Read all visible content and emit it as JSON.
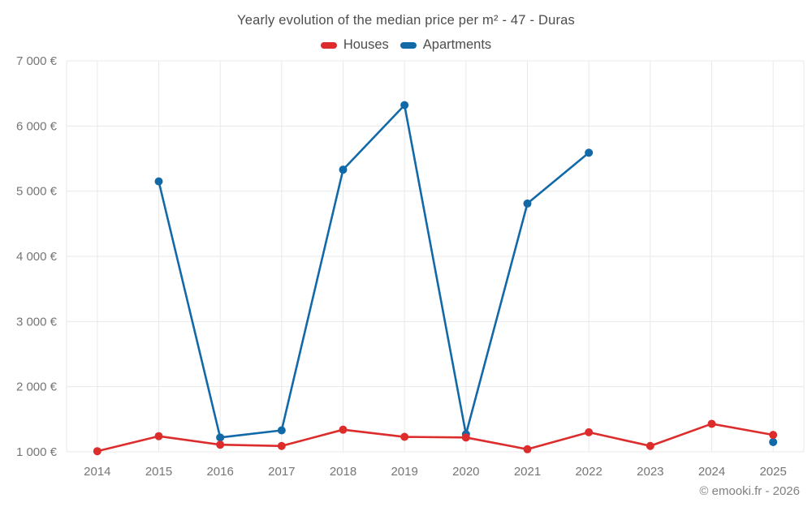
{
  "title": "Yearly evolution of the median price per m² - 47 - Duras",
  "legend": {
    "items": [
      {
        "label": "Houses",
        "color": "#dd2c2c"
      },
      {
        "label": "Apartments",
        "color": "#1269a8"
      }
    ]
  },
  "footer": {
    "credit": "© emooki.fr - 2026"
  },
  "chart_data": {
    "type": "line",
    "title": "Yearly evolution of the median price per m² - 47 - Duras",
    "x": [
      2014,
      2015,
      2016,
      2017,
      2018,
      2019,
      2020,
      2021,
      2022,
      2023,
      2024,
      2025
    ],
    "series": [
      {
        "name": "Houses",
        "color": "#dd2c2c",
        "values": [
          1010,
          1240,
          1110,
          1090,
          1340,
          1230,
          1220,
          1040,
          1300,
          1090,
          1430,
          1260
        ]
      },
      {
        "name": "Apartments",
        "color": "#1269a8",
        "values": [
          null,
          5150,
          1220,
          1330,
          5330,
          6320,
          1270,
          4810,
          5590,
          null,
          null,
          1150
        ]
      }
    ],
    "xlabel": "",
    "ylabel": "",
    "ylim": [
      1000,
      7000
    ],
    "ytick_step": 1000,
    "yticks": [
      1000,
      2000,
      3000,
      4000,
      5000,
      6000,
      7000
    ],
    "ytick_labels": [
      "1 000 €",
      "2 000 €",
      "3 000 €",
      "4 000 €",
      "5 000 €",
      "6 000 €",
      "7 000 €"
    ],
    "xtick_labels": [
      "2014",
      "2015",
      "2016",
      "2017",
      "2018",
      "2019",
      "2020",
      "2021",
      "2022",
      "2023",
      "2024",
      "2025"
    ],
    "grid": true,
    "grid_color": "#e9e9e9",
    "tick_label_color": "#757575",
    "legend_position": "top"
  }
}
